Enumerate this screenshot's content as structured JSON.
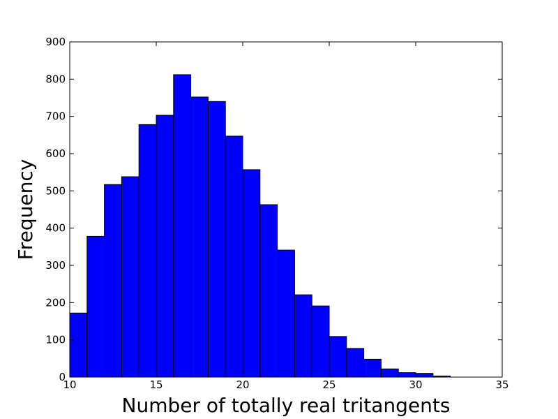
{
  "chart_data": {
    "type": "bar",
    "title": "",
    "xlabel": "Number of totally real tritangents",
    "ylabel": "Frequency",
    "xlim": [
      10,
      35
    ],
    "ylim": [
      0,
      900
    ],
    "xticks": [
      "10",
      "15",
      "20",
      "25",
      "30",
      "35"
    ],
    "yticks": [
      "0",
      "100",
      "200",
      "300",
      "400",
      "500",
      "600",
      "700",
      "800",
      "900"
    ],
    "bin_width": 1,
    "bins": [
      10,
      11,
      12,
      13,
      14,
      15,
      16,
      17,
      18,
      19,
      20,
      21,
      22,
      23,
      24,
      25,
      26,
      27,
      28,
      29,
      30,
      31
    ],
    "values": [
      172,
      378,
      517,
      538,
      678,
      703,
      812,
      752,
      740,
      647,
      557,
      463,
      341,
      221,
      191,
      109,
      77,
      48,
      22,
      12,
      10,
      3
    ],
    "bar_color": "#0000ff",
    "edge_color": "#000000",
    "grid": false,
    "legend": "none"
  }
}
